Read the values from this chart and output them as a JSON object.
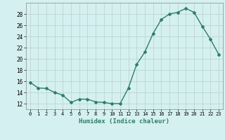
{
  "x": [
    0,
    1,
    2,
    3,
    4,
    5,
    6,
    7,
    8,
    9,
    10,
    11,
    12,
    13,
    14,
    15,
    16,
    17,
    18,
    19,
    20,
    21,
    22,
    23
  ],
  "y": [
    15.8,
    14.8,
    14.7,
    14.0,
    13.5,
    12.2,
    12.8,
    12.8,
    12.3,
    12.2,
    12.0,
    12.0,
    14.8,
    19.0,
    21.2,
    24.5,
    27.0,
    28.0,
    28.3,
    29.0,
    28.3,
    25.8,
    23.5,
    20.8
  ],
  "xlabel": "Humidex (Indice chaleur)",
  "xlim": [
    -0.5,
    23.5
  ],
  "ylim": [
    11,
    30
  ],
  "yticks": [
    12,
    14,
    16,
    18,
    20,
    22,
    24,
    26,
    28
  ],
  "xticks": [
    0,
    1,
    2,
    3,
    4,
    5,
    6,
    7,
    8,
    9,
    10,
    11,
    12,
    13,
    14,
    15,
    16,
    17,
    18,
    19,
    20,
    21,
    22,
    23
  ],
  "line_color": "#2e7d6e",
  "marker": "D",
  "marker_size": 2.0,
  "bg_color": "#d5f0f0",
  "grid_color": "#b8d0d0",
  "line_width": 1.0
}
